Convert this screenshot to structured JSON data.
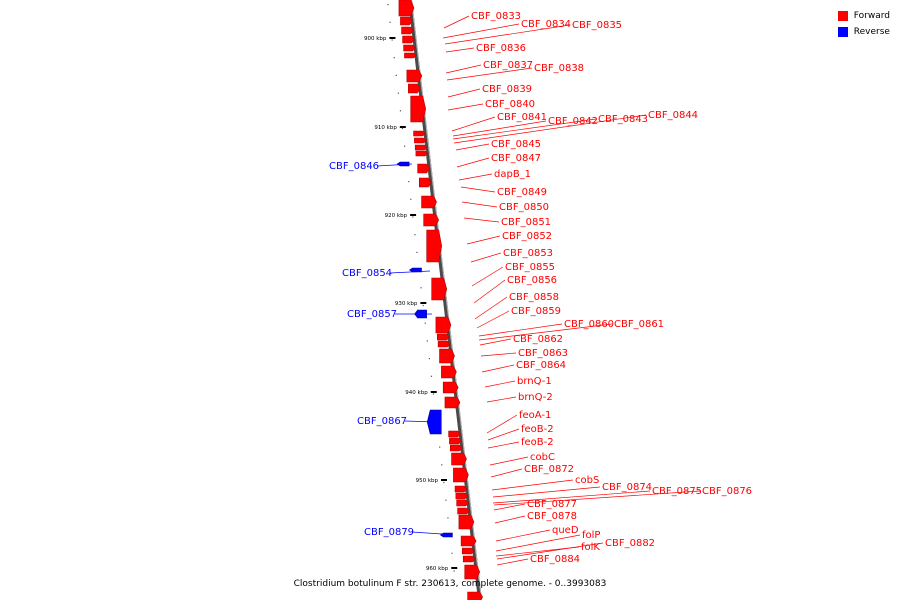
{
  "legend": [
    {
      "label": "Forward",
      "color": "#ff0000"
    },
    {
      "label": "Reverse",
      "color": "#0000ff"
    }
  ],
  "caption": "Clostridium botulinum F str. 230613, complete genome. - 0..3993083",
  "ticks": [
    "900 kbp",
    "910 kbp",
    "920 kbp",
    "930 kbp",
    "940 kbp",
    "950 kbp",
    "960 kbp"
  ],
  "genes": [
    {
      "name": "CBF_0833",
      "strand": "forward"
    },
    {
      "name": "CBF_0834",
      "strand": "forward"
    },
    {
      "name": "CBF_0835",
      "strand": "forward"
    },
    {
      "name": "CBF_0836",
      "strand": "forward"
    },
    {
      "name": "CBF_0837",
      "strand": "forward"
    },
    {
      "name": "CBF_0838",
      "strand": "forward"
    },
    {
      "name": "CBF_0839",
      "strand": "forward"
    },
    {
      "name": "CBF_0840",
      "strand": "forward"
    },
    {
      "name": "CBF_0841",
      "strand": "forward"
    },
    {
      "name": "CBF_0842",
      "strand": "forward"
    },
    {
      "name": "CBF_0843",
      "strand": "forward"
    },
    {
      "name": "CBF_0844",
      "strand": "forward"
    },
    {
      "name": "CBF_0845",
      "strand": "forward"
    },
    {
      "name": "CBF_0846",
      "strand": "reverse"
    },
    {
      "name": "CBF_0847",
      "strand": "forward"
    },
    {
      "name": "dapB_1",
      "strand": "forward"
    },
    {
      "name": "CBF_0849",
      "strand": "forward"
    },
    {
      "name": "CBF_0850",
      "strand": "forward"
    },
    {
      "name": "CBF_0851",
      "strand": "forward"
    },
    {
      "name": "CBF_0852",
      "strand": "forward"
    },
    {
      "name": "CBF_0853",
      "strand": "forward"
    },
    {
      "name": "CBF_0854",
      "strand": "reverse"
    },
    {
      "name": "CBF_0855",
      "strand": "forward"
    },
    {
      "name": "CBF_0856",
      "strand": "forward"
    },
    {
      "name": "CBF_0857",
      "strand": "reverse"
    },
    {
      "name": "CBF_0858",
      "strand": "forward"
    },
    {
      "name": "CBF_0859",
      "strand": "forward"
    },
    {
      "name": "CBF_0860",
      "strand": "forward"
    },
    {
      "name": "CBF_0861",
      "strand": "forward"
    },
    {
      "name": "CBF_0862",
      "strand": "forward"
    },
    {
      "name": "CBF_0863",
      "strand": "forward"
    },
    {
      "name": "CBF_0864",
      "strand": "forward"
    },
    {
      "name": "brnQ-1",
      "strand": "forward"
    },
    {
      "name": "brnQ-2",
      "strand": "forward"
    },
    {
      "name": "CBF_0867",
      "strand": "reverse"
    },
    {
      "name": "feoA-1",
      "strand": "forward"
    },
    {
      "name": "feoB-2",
      "strand": "forward"
    },
    {
      "name": "feoB-2",
      "strand": "forward"
    },
    {
      "name": "cobC",
      "strand": "forward"
    },
    {
      "name": "CBF_0872",
      "strand": "forward"
    },
    {
      "name": "cobS",
      "strand": "forward"
    },
    {
      "name": "CBF_0874",
      "strand": "forward"
    },
    {
      "name": "CBF_0875",
      "strand": "forward"
    },
    {
      "name": "CBF_0876",
      "strand": "forward"
    },
    {
      "name": "CBF_0877",
      "strand": "forward"
    },
    {
      "name": "CBF_0878",
      "strand": "forward"
    },
    {
      "name": "CBF_0879",
      "strand": "reverse"
    },
    {
      "name": "queD",
      "strand": "forward"
    },
    {
      "name": "folP",
      "strand": "forward"
    },
    {
      "name": "folK",
      "strand": "forward"
    },
    {
      "name": "CBF_0882",
      "strand": "forward"
    },
    {
      "name": "CBF_0884",
      "strand": "forward"
    }
  ]
}
